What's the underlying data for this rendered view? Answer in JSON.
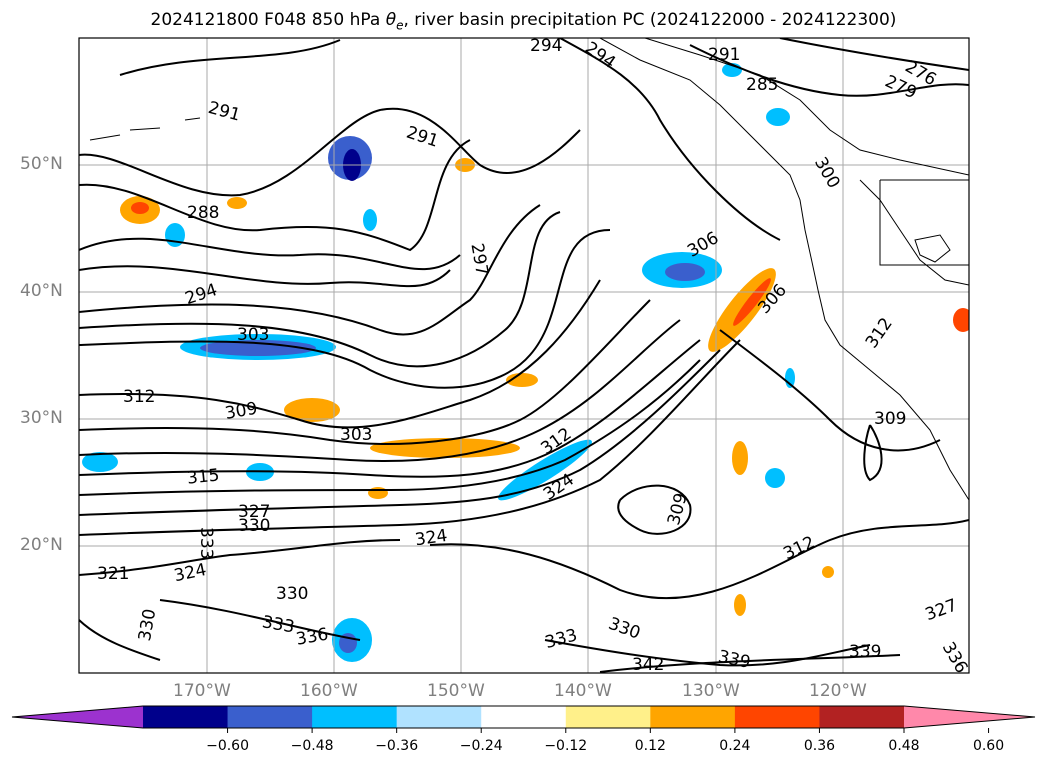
{
  "title": {
    "prefix": "2024121800 F048 850 hPa ",
    "theta": "θ",
    "theta_sub": "e",
    "suffix": ", river basin precipitation PC (2024122000 - 2024122300)"
  },
  "map": {
    "lat_ticks": [
      "50°N",
      "40°N",
      "30°N",
      "20°N"
    ],
    "lon_ticks": [
      "170°W",
      "160°W",
      "150°W",
      "140°W",
      "130°W",
      "120°W"
    ],
    "contour_labels": [
      "294",
      "294",
      "276",
      "279",
      "285",
      "291",
      "291",
      "291",
      "288",
      "297",
      "306",
      "300",
      "294",
      "303",
      "312",
      "309",
      "303",
      "306",
      "315",
      "327",
      "330",
      "333",
      "321",
      "324",
      "324",
      "324",
      "309",
      "312",
      "309",
      "330",
      "333",
      "336",
      "333",
      "330",
      "342",
      "339",
      "339",
      "336",
      "330",
      "312",
      "327",
      "312"
    ]
  },
  "colorbar": {
    "colors": [
      "#9c32cf",
      "#00008b",
      "#3a5fcd",
      "#00bfff",
      "#b0e2ff",
      "#ffffff",
      "#fff08a",
      "#ffa500",
      "#ff4500",
      "#b22222",
      "#ff88aa"
    ],
    "tick_labels": [
      "−0.60",
      "−0.48",
      "−0.36",
      "−0.24",
      "−0.12",
      "0.12",
      "0.24",
      "0.36",
      "0.48",
      "0.60"
    ]
  }
}
